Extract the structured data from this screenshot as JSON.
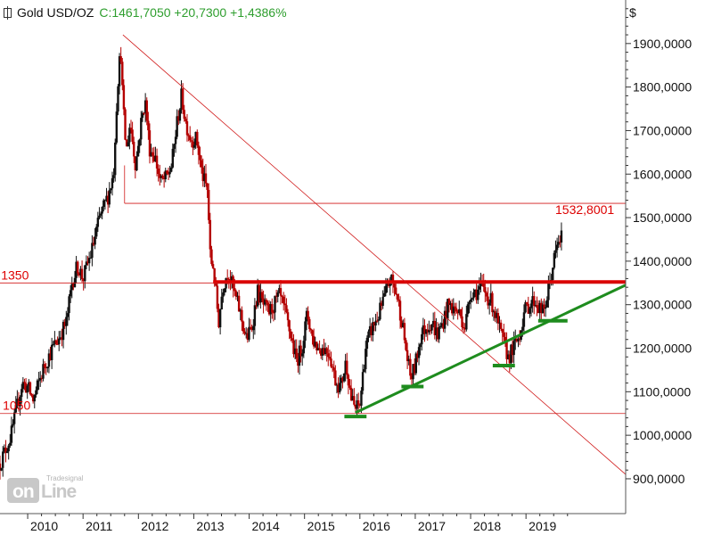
{
  "header": {
    "title": "Gold USD/OZ",
    "quote": "C:1461,7050 +20,7300 +1,4386%"
  },
  "currency_symbol": "$",
  "watermark": {
    "brand": "Tradesignal",
    "mark_on": "on",
    "mark_line": "Line"
  },
  "colors": {
    "up_candle": "#111111",
    "down_candle": "#b40000",
    "resistance": "#dd0000",
    "thin_line": "#d01818",
    "support": "#1e8c1e",
    "quote_green": "#2e9e2e"
  },
  "chart_data": {
    "type": "candlestick",
    "title": "Gold USD/OZ",
    "last_close": 1461.705,
    "xlim": [
      2009.5,
      2020.8
    ],
    "ylim": [
      820,
      2000
    ],
    "x_ticks": [
      "2010",
      "2011",
      "2012",
      "2013",
      "2014",
      "2015",
      "2016",
      "2017",
      "2018",
      "2019"
    ],
    "y_ticks": [
      "900,0000",
      "1000,0000",
      "1100,0000",
      "1200,0000",
      "1300,0000",
      "1400,0000",
      "1500,0000",
      "1600,0000",
      "1700,0000",
      "1800,0000",
      "1900,0000"
    ],
    "y_tick_values": [
      900,
      1000,
      1100,
      1200,
      1300,
      1400,
      1500,
      1600,
      1700,
      1800,
      1900
    ],
    "price_path": [
      [
        2009.5,
        935
      ],
      [
        2009.7,
        1000
      ],
      [
        2009.9,
        1120
      ],
      [
        2010.0,
        1110
      ],
      [
        2010.1,
        1080
      ],
      [
        2010.2,
        1120
      ],
      [
        2010.3,
        1160
      ],
      [
        2010.45,
        1200
      ],
      [
        2010.55,
        1220
      ],
      [
        2010.7,
        1260
      ],
      [
        2010.8,
        1350
      ],
      [
        2010.9,
        1390
      ],
      [
        2011.0,
        1360
      ],
      [
        2011.15,
        1420
      ],
      [
        2011.3,
        1500
      ],
      [
        2011.45,
        1550
      ],
      [
        2011.55,
        1600
      ],
      [
        2011.62,
        1800
      ],
      [
        2011.68,
        1890
      ],
      [
        2011.72,
        1760
      ],
      [
        2011.78,
        1650
      ],
      [
        2011.85,
        1720
      ],
      [
        2011.95,
        1620
      ],
      [
        2012.05,
        1720
      ],
      [
        2012.12,
        1770
      ],
      [
        2012.2,
        1660
      ],
      [
        2012.3,
        1640
      ],
      [
        2012.4,
        1580
      ],
      [
        2012.5,
        1590
      ],
      [
        2012.6,
        1620
      ],
      [
        2012.7,
        1720
      ],
      [
        2012.78,
        1780
      ],
      [
        2012.85,
        1720
      ],
      [
        2012.95,
        1680
      ],
      [
        2013.05,
        1680
      ],
      [
        2013.15,
        1600
      ],
      [
        2013.25,
        1560
      ],
      [
        2013.3,
        1400
      ],
      [
        2013.35,
        1390
      ],
      [
        2013.45,
        1260
      ],
      [
        2013.52,
        1340
      ],
      [
        2013.62,
        1380
      ],
      [
        2013.72,
        1330
      ],
      [
        2013.82,
        1290
      ],
      [
        2013.95,
        1220
      ],
      [
        2014.05,
        1250
      ],
      [
        2014.15,
        1330
      ],
      [
        2014.25,
        1300
      ],
      [
        2014.35,
        1280
      ],
      [
        2014.45,
        1300
      ],
      [
        2014.55,
        1320
      ],
      [
        2014.65,
        1280
      ],
      [
        2014.75,
        1230
      ],
      [
        2014.85,
        1170
      ],
      [
        2014.95,
        1200
      ],
      [
        2015.05,
        1280
      ],
      [
        2015.15,
        1220
      ],
      [
        2015.25,
        1200
      ],
      [
        2015.35,
        1200
      ],
      [
        2015.45,
        1190
      ],
      [
        2015.55,
        1130
      ],
      [
        2015.65,
        1110
      ],
      [
        2015.75,
        1170
      ],
      [
        2015.85,
        1080
      ],
      [
        2015.92,
        1060
      ],
      [
        2016.0,
        1070
      ],
      [
        2016.1,
        1200
      ],
      [
        2016.2,
        1240
      ],
      [
        2016.35,
        1280
      ],
      [
        2016.45,
        1320
      ],
      [
        2016.55,
        1360
      ],
      [
        2016.65,
        1330
      ],
      [
        2016.75,
        1270
      ],
      [
        2016.85,
        1180
      ],
      [
        2016.92,
        1130
      ],
      [
        2017.0,
        1160
      ],
      [
        2017.1,
        1230
      ],
      [
        2017.2,
        1250
      ],
      [
        2017.3,
        1260
      ],
      [
        2017.4,
        1230
      ],
      [
        2017.5,
        1260
      ],
      [
        2017.6,
        1300
      ],
      [
        2017.7,
        1290
      ],
      [
        2017.8,
        1280
      ],
      [
        2017.9,
        1250
      ],
      [
        2018.0,
        1330
      ],
      [
        2018.1,
        1330
      ],
      [
        2018.2,
        1340
      ],
      [
        2018.3,
        1320
      ],
      [
        2018.4,
        1300
      ],
      [
        2018.5,
        1250
      ],
      [
        2018.6,
        1210
      ],
      [
        2018.68,
        1180
      ],
      [
        2018.78,
        1200
      ],
      [
        2018.88,
        1230
      ],
      [
        2018.96,
        1280
      ],
      [
        2019.05,
        1300
      ],
      [
        2019.15,
        1310
      ],
      [
        2019.25,
        1290
      ],
      [
        2019.32,
        1280
      ],
      [
        2019.4,
        1330
      ],
      [
        2019.5,
        1400
      ],
      [
        2019.58,
        1440
      ],
      [
        2019.66,
        1461.7
      ]
    ],
    "lines": [
      {
        "name": "resistance-1350",
        "kind": "hline",
        "y": 1352,
        "x_from": 2013.35,
        "x_to": 2020.8
      },
      {
        "name": "level-1350-thin",
        "kind": "hline",
        "y": 1350,
        "x_from": 2009.5,
        "x_to": 2020.8
      },
      {
        "name": "level-1050-thin",
        "kind": "hline",
        "y": 1050,
        "x_from": 2009.5,
        "x_to": 2020.8
      },
      {
        "name": "level-1532-thin",
        "kind": "hline",
        "y": 1532.8,
        "x_from": 2011.75,
        "x_to": 2020.8
      },
      {
        "name": "downtrend",
        "kind": "segment",
        "x1": 2011.72,
        "y1": 1920,
        "x2": 2020.8,
        "y2": 910
      },
      {
        "name": "uptrend",
        "kind": "segment",
        "x1": 2015.92,
        "y1": 1052,
        "x2": 2020.8,
        "y2": 1345
      }
    ],
    "support_marks": [
      {
        "x_from": 2015.72,
        "x_to": 2016.12,
        "y": 1043
      },
      {
        "x_from": 2016.75,
        "x_to": 2017.15,
        "y": 1112
      },
      {
        "x_from": 2018.4,
        "x_to": 2018.8,
        "y": 1160
      },
      {
        "x_from": 2019.22,
        "x_to": 2019.75,
        "y": 1263
      }
    ],
    "annotations": [
      {
        "text": "1350",
        "x": 2009.52,
        "y": 1350
      },
      {
        "text": "1050",
        "x": 2009.55,
        "y": 1050
      },
      {
        "text": "1532,8001",
        "x": 2019.65,
        "y": 1532.8
      }
    ]
  }
}
